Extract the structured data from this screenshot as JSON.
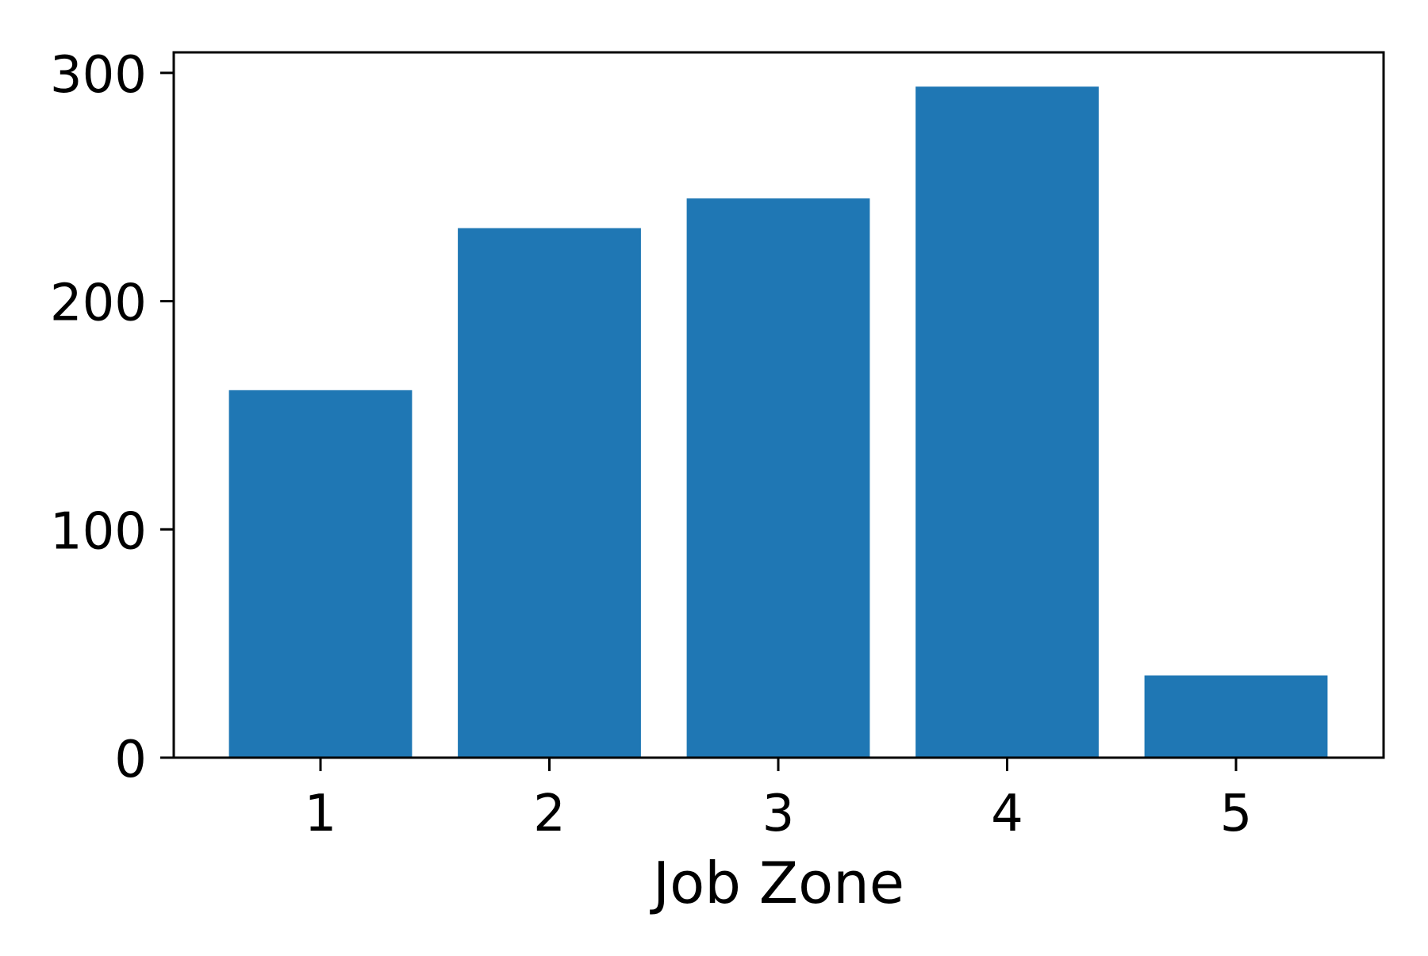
{
  "chart_data": {
    "type": "bar",
    "title": "",
    "xlabel": "Job Zone",
    "ylabel": "",
    "categories": [
      "1",
      "2",
      "3",
      "4",
      "5"
    ],
    "values": [
      161,
      232,
      245,
      294,
      36
    ],
    "ylim": [
      0,
      309
    ],
    "yticks": [
      0,
      100,
      200,
      300
    ],
    "grid": false,
    "legend": "none",
    "bar_color": "#1f77b4"
  }
}
